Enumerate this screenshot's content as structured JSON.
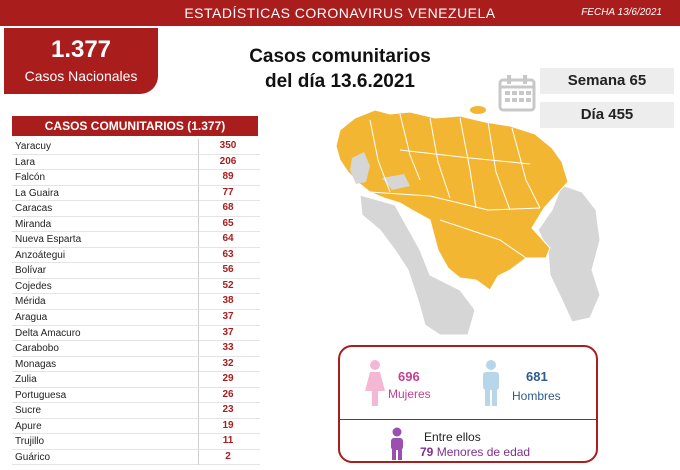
{
  "header": {
    "title": "ESTADÍSTICAS CORONAVIRUS VENEZUELA",
    "date": "FECHA 13/6/2021"
  },
  "national": {
    "total": "1.377",
    "label": "Casos Nacionales"
  },
  "main_title": {
    "line1": "Casos comunitarios",
    "line2": "del día 13.6.2021"
  },
  "week": "Semana 65",
  "day": "Día 455",
  "table": {
    "header": "CASOS COMUNITARIOS (1.377)",
    "rows": [
      {
        "state": "Yaracuy",
        "value": "350"
      },
      {
        "state": "Lara",
        "value": "206"
      },
      {
        "state": "Falcón",
        "value": "89"
      },
      {
        "state": "La Guaira",
        "value": "77"
      },
      {
        "state": "Caracas",
        "value": "68"
      },
      {
        "state": "Miranda",
        "value": "65"
      },
      {
        "state": "Nueva Esparta",
        "value": "64"
      },
      {
        "state": "Anzoátegui",
        "value": "63"
      },
      {
        "state": "Bolívar",
        "value": "56"
      },
      {
        "state": "Cojedes",
        "value": "52"
      },
      {
        "state": "Mérida",
        "value": "38"
      },
      {
        "state": "Aragua",
        "value": "37"
      },
      {
        "state": "Delta Amacuro",
        "value": "37"
      },
      {
        "state": "Carabobo",
        "value": "33"
      },
      {
        "state": "Monagas",
        "value": "32"
      },
      {
        "state": "Zulia",
        "value": "29"
      },
      {
        "state": "Portuguesa",
        "value": "26"
      },
      {
        "state": "Sucre",
        "value": "23"
      },
      {
        "state": "Apure",
        "value": "19"
      },
      {
        "state": "Trujillo",
        "value": "11"
      },
      {
        "state": "Guárico",
        "value": "2"
      }
    ]
  },
  "gender": {
    "women_count": "696",
    "women_label": "Mujeres",
    "men_count": "681",
    "men_label": "Hombres",
    "among_label": "Entre ellos",
    "minors_count": "79",
    "minors_label": "Menores de edad"
  },
  "colors": {
    "brand_red": "#a91d1d",
    "map_yellow": "#f2b632",
    "map_gray": "#d6d6d6",
    "women": "#c63f93",
    "men": "#2e5b8a",
    "minors": "#7e2f8e"
  }
}
